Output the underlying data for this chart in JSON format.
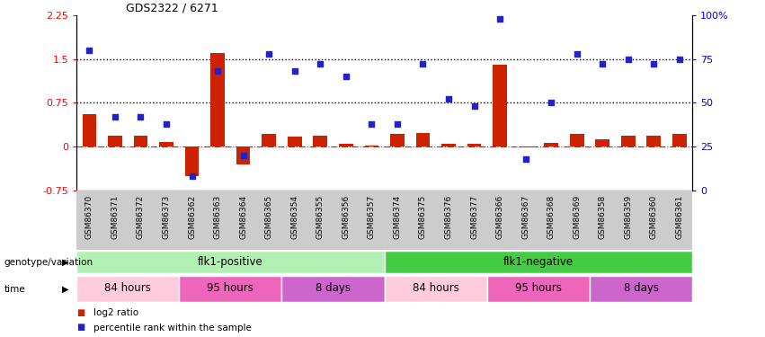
{
  "title": "GDS2322 / 6271",
  "samples": [
    "GSM86370",
    "GSM86371",
    "GSM86372",
    "GSM86373",
    "GSM86362",
    "GSM86363",
    "GSM86364",
    "GSM86365",
    "GSM86354",
    "GSM86355",
    "GSM86356",
    "GSM86357",
    "GSM86374",
    "GSM86375",
    "GSM86376",
    "GSM86377",
    "GSM86366",
    "GSM86367",
    "GSM86368",
    "GSM86369",
    "GSM86358",
    "GSM86359",
    "GSM86360",
    "GSM86361"
  ],
  "log2_ratio": [
    0.55,
    0.18,
    0.18,
    0.08,
    -0.5,
    1.6,
    -0.3,
    0.22,
    0.17,
    0.18,
    0.05,
    0.02,
    0.22,
    0.23,
    0.05,
    0.05,
    1.4,
    -0.02,
    0.06,
    0.22,
    0.12,
    0.18,
    0.18,
    0.22
  ],
  "percentile": [
    80,
    42,
    42,
    38,
    8,
    68,
    20,
    78,
    68,
    72,
    65,
    38,
    38,
    72,
    52,
    48,
    98,
    18,
    50,
    78,
    72,
    75,
    72,
    75
  ],
  "genotype_groups": [
    {
      "label": "flk1-positive",
      "start": 0,
      "end": 12,
      "color": "#b3f0b3"
    },
    {
      "label": "flk1-negative",
      "start": 12,
      "end": 24,
      "color": "#44cc44"
    }
  ],
  "time_groups": [
    {
      "label": "84 hours",
      "start": 0,
      "end": 4,
      "color": "#ffccdd"
    },
    {
      "label": "95 hours",
      "start": 4,
      "end": 8,
      "color": "#ee66bb"
    },
    {
      "label": "8 days",
      "start": 8,
      "end": 12,
      "color": "#cc66cc"
    },
    {
      "label": "84 hours",
      "start": 12,
      "end": 16,
      "color": "#ffccdd"
    },
    {
      "label": "95 hours",
      "start": 16,
      "end": 20,
      "color": "#ee66bb"
    },
    {
      "label": "8 days",
      "start": 20,
      "end": 24,
      "color": "#cc66cc"
    }
  ],
  "bar_color": "#cc2200",
  "dot_color": "#2222cc",
  "hline0_color": "#cc2200",
  "ylim_left": [
    -0.75,
    2.25
  ],
  "ylim_right": [
    0,
    100
  ],
  "yticks_left": [
    -0.75,
    0.0,
    0.75,
    1.5,
    2.25
  ],
  "yticks_right": [
    0,
    25,
    50,
    75,
    100
  ],
  "ytick_right_labels": [
    "0",
    "25",
    "50",
    "75",
    "100%"
  ],
  "hlines": [
    0.75,
    1.5
  ],
  "label_genotype": "genotype/variation",
  "label_time": "time",
  "legend_items": [
    {
      "color": "#cc2200",
      "label": "log2 ratio"
    },
    {
      "color": "#2222cc",
      "label": "percentile rank within the sample"
    }
  ],
  "xtick_bg": "#cccccc",
  "background_color": "#ffffff"
}
